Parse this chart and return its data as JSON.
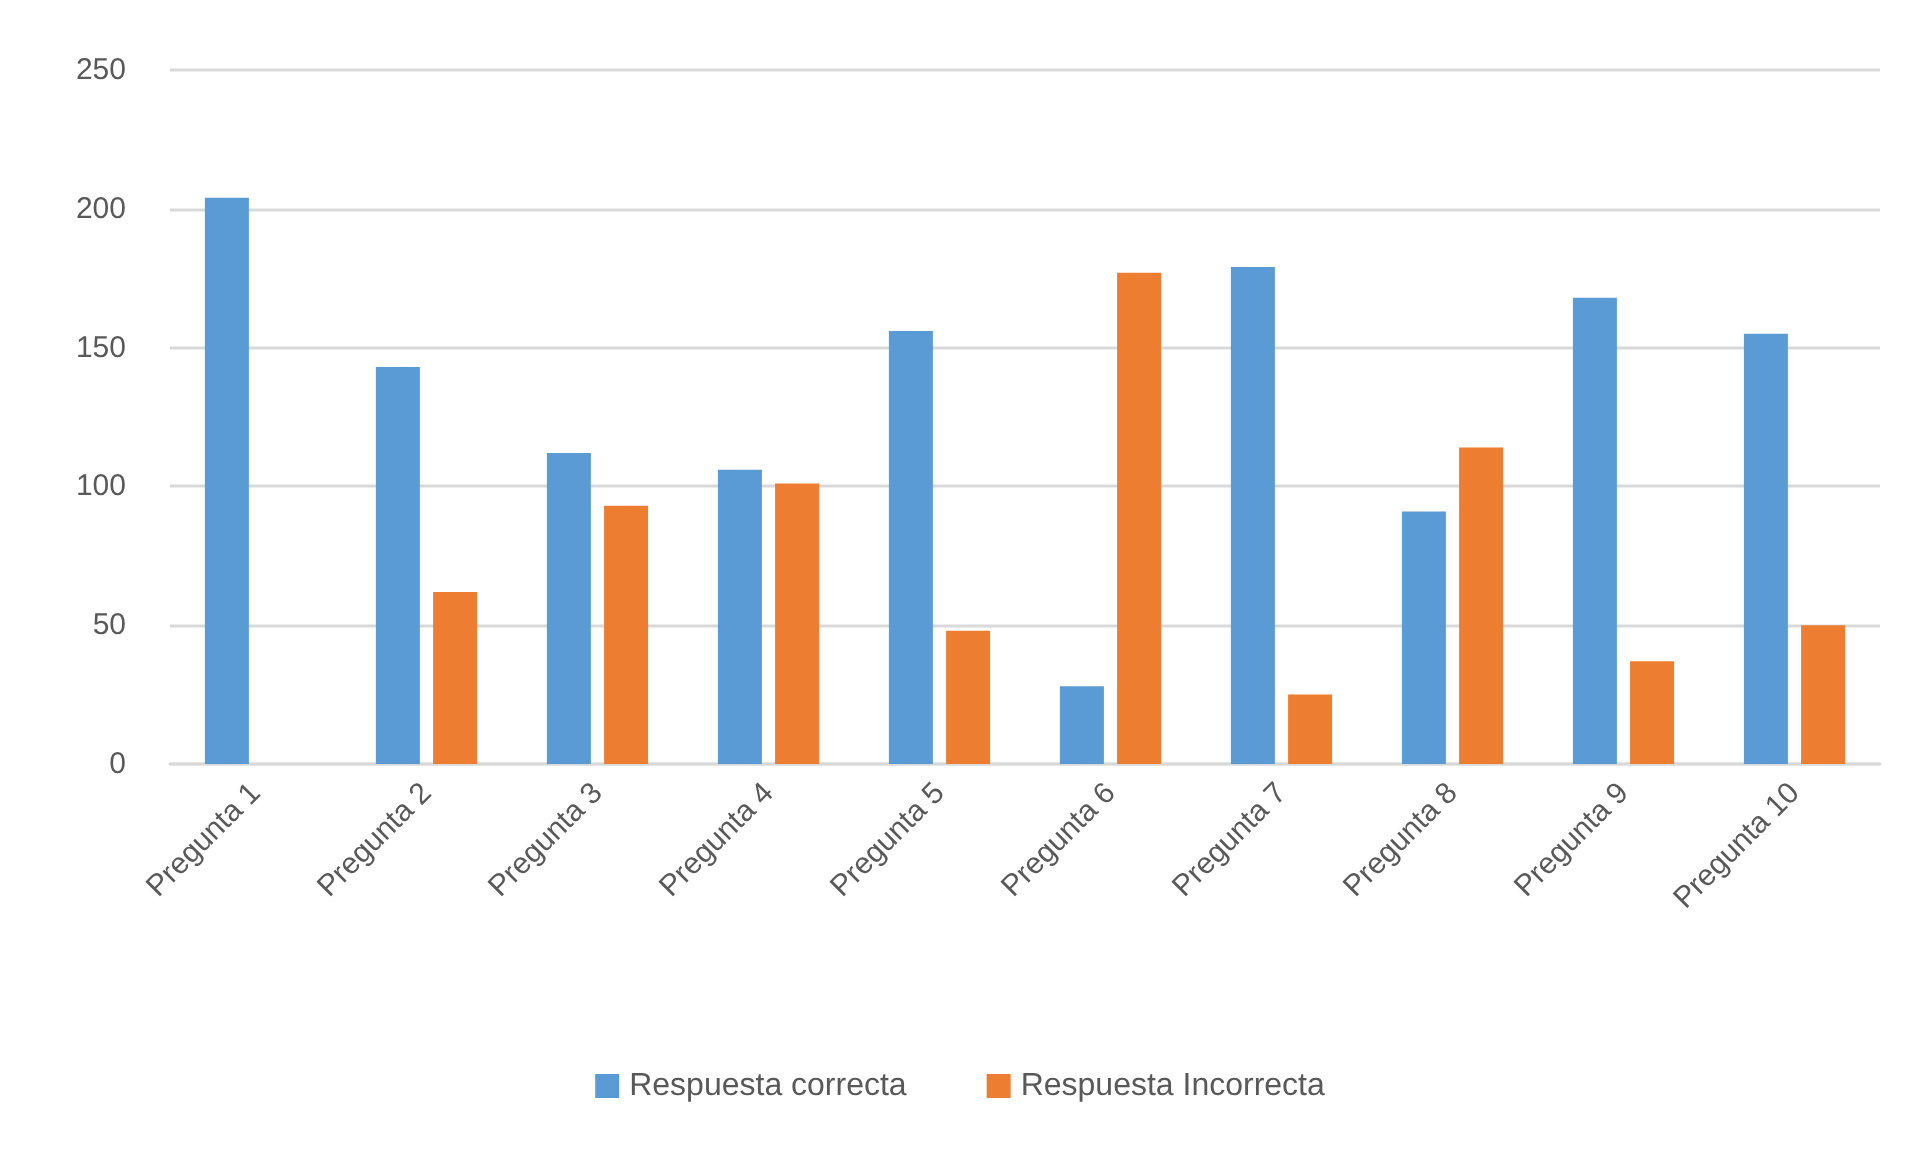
{
  "chart_data": {
    "type": "bar",
    "categories": [
      "Pregunta 1",
      "Pregunta 2",
      "Pregunta 3",
      "Pregunta 4",
      "Pregunta 5",
      "Pregunta 6",
      "Pregunta 7",
      "Pregunta 8",
      "Pregunta 9",
      "Pregunta 10"
    ],
    "series": [
      {
        "name": "Respuesta correcta",
        "color": "#5b9bd5",
        "values": [
          204,
          143,
          112,
          106,
          156,
          28,
          179,
          91,
          168,
          155
        ]
      },
      {
        "name": "Respuesta Incorrecta",
        "color": "#ed7d31",
        "values": [
          null,
          62,
          93,
          101,
          48,
          177,
          25,
          114,
          37,
          50
        ]
      }
    ],
    "ylim": [
      0,
      250
    ],
    "yticks": [
      0,
      50,
      100,
      150,
      200,
      250
    ],
    "grid": "y",
    "legend": "bottom"
  }
}
